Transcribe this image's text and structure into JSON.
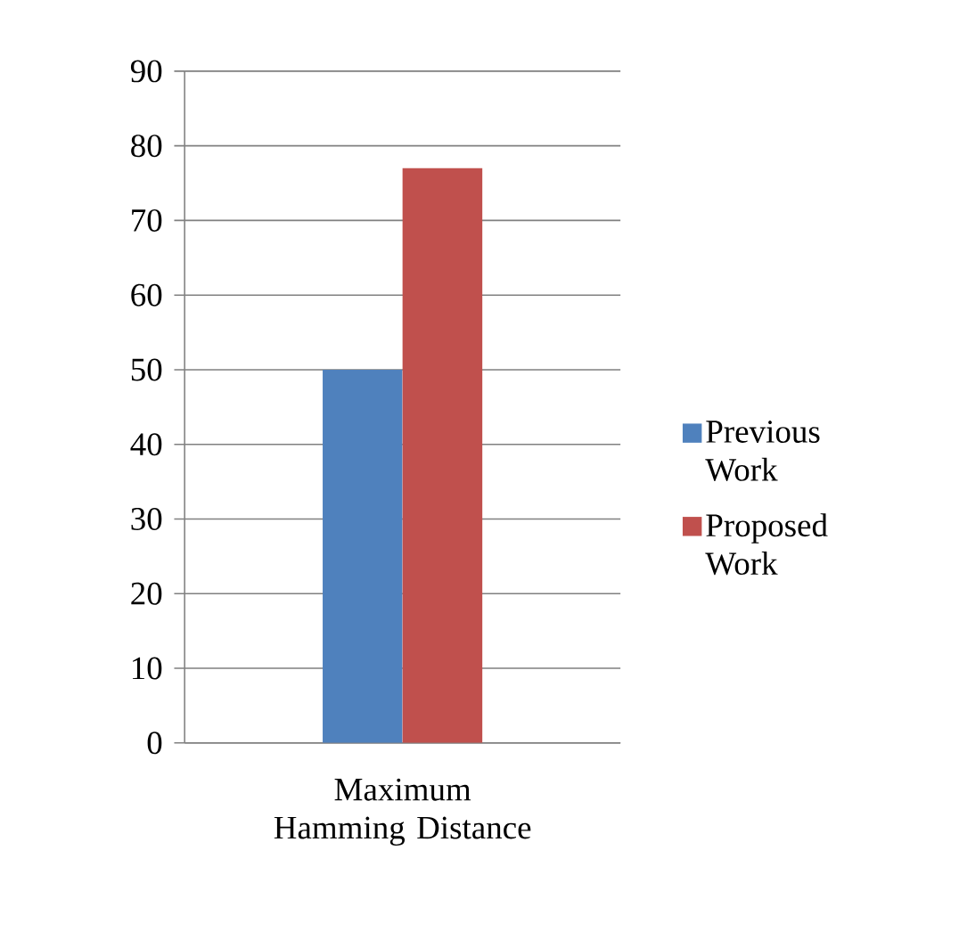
{
  "chart_data": {
    "type": "bar",
    "categories": [
      "Maximum Hamming Distance"
    ],
    "series": [
      {
        "name": "Previous Work",
        "color": "#4f81bd",
        "values": [
          50
        ]
      },
      {
        "name": "Proposed Work",
        "color": "#c0504d",
        "values": [
          77
        ]
      }
    ],
    "ylim": [
      0,
      90
    ],
    "yticks": [
      0,
      10,
      20,
      30,
      40,
      50,
      60,
      70,
      80,
      90
    ],
    "grid": "y",
    "legend": "right"
  }
}
